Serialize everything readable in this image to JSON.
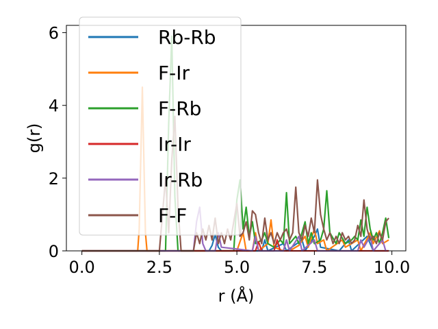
{
  "chart_data": {
    "type": "line",
    "xlabel": "r (Å)",
    "ylabel": "g(r)",
    "xlim": [
      -0.5,
      10.45
    ],
    "ylim": [
      0,
      6.2
    ],
    "xticks": [
      0.0,
      2.5,
      5.0,
      7.5,
      10.0
    ],
    "xtick_labels": [
      "0.0",
      "2.5",
      "5.0",
      "7.5",
      "10.0"
    ],
    "yticks": [
      0,
      2,
      4,
      6
    ],
    "ytick_labels": [
      "0",
      "2",
      "4",
      "6"
    ],
    "legend_position": "top-left",
    "grid": false,
    "series": [
      {
        "name": "Rb-Rb",
        "color": "#1f77b4",
        "points": [
          [
            0,
            0
          ],
          [
            4.1,
            0
          ],
          [
            4.2,
            0.15
          ],
          [
            4.3,
            0.45
          ],
          [
            4.4,
            0.1
          ],
          [
            4.5,
            0
          ],
          [
            5.8,
            0
          ],
          [
            5.9,
            0.3
          ],
          [
            6.0,
            0
          ],
          [
            6.5,
            0.2
          ],
          [
            6.6,
            0
          ],
          [
            7.1,
            0.3
          ],
          [
            7.2,
            0
          ],
          [
            7.5,
            0.4
          ],
          [
            7.6,
            0.6
          ],
          [
            7.7,
            0.1
          ],
          [
            8.3,
            0
          ],
          [
            8.6,
            0.3
          ],
          [
            8.7,
            0
          ],
          [
            9.2,
            0.4
          ],
          [
            9.4,
            0
          ],
          [
            9.9,
            0
          ]
        ]
      },
      {
        "name": "F-Ir",
        "color": "#ff7f0e",
        "points": [
          [
            0,
            0
          ],
          [
            1.8,
            0
          ],
          [
            1.85,
            0.6
          ],
          [
            1.95,
            4.5
          ],
          [
            2.05,
            0.5
          ],
          [
            2.1,
            0
          ],
          [
            5.0,
            0
          ],
          [
            5.2,
            0.5
          ],
          [
            5.3,
            0
          ],
          [
            5.5,
            0
          ],
          [
            5.6,
            0.5
          ],
          [
            5.7,
            0
          ],
          [
            6.0,
            0.2
          ],
          [
            6.1,
            0.85
          ],
          [
            6.2,
            0.1
          ],
          [
            6.5,
            0
          ],
          [
            6.6,
            0.3
          ],
          [
            6.7,
            0
          ],
          [
            7.0,
            0.15
          ],
          [
            7.2,
            0.4
          ],
          [
            7.3,
            0.1
          ],
          [
            7.5,
            0.6
          ],
          [
            7.6,
            0.2
          ],
          [
            7.8,
            0.3
          ],
          [
            7.9,
            0
          ],
          [
            8.4,
            0.3
          ],
          [
            8.5,
            0.1
          ],
          [
            8.9,
            0.3
          ],
          [
            9.0,
            0
          ],
          [
            9.3,
            0.5
          ],
          [
            9.4,
            0.2
          ],
          [
            9.6,
            0.55
          ],
          [
            9.7,
            0.2
          ],
          [
            9.9,
            0.3
          ]
        ]
      },
      {
        "name": "F-Rb",
        "color": "#2ca02c",
        "points": [
          [
            0,
            0
          ],
          [
            2.7,
            0
          ],
          [
            2.8,
            3.5
          ],
          [
            2.9,
            5.9
          ],
          [
            3.0,
            1.5
          ],
          [
            3.1,
            0
          ],
          [
            4.9,
            0
          ],
          [
            5.0,
            1.4
          ],
          [
            5.1,
            1.95
          ],
          [
            5.2,
            0.6
          ],
          [
            5.3,
            1.2
          ],
          [
            5.4,
            0.4
          ],
          [
            5.5,
            0.8
          ],
          [
            5.6,
            0.2
          ],
          [
            5.8,
            0.3
          ],
          [
            5.9,
            0.5
          ],
          [
            6.0,
            0.2
          ],
          [
            6.2,
            0.1
          ],
          [
            6.4,
            0.3
          ],
          [
            6.5,
            0.2
          ],
          [
            6.6,
            1.6
          ],
          [
            6.7,
            0.2
          ],
          [
            6.9,
            0.4
          ],
          [
            7.0,
            0.2
          ],
          [
            7.1,
            0.5
          ],
          [
            7.2,
            0.8
          ],
          [
            7.3,
            0.2
          ],
          [
            7.4,
            0.5
          ],
          [
            7.5,
            0.2
          ],
          [
            7.7,
            0.3
          ],
          [
            7.8,
            0.6
          ],
          [
            7.9,
            1.65
          ],
          [
            8.0,
            0.5
          ],
          [
            8.2,
            0.2
          ],
          [
            8.3,
            0.5
          ],
          [
            8.5,
            0.2
          ],
          [
            8.7,
            0.3
          ],
          [
            8.8,
            0.4
          ],
          [
            8.9,
            0.3
          ],
          [
            9.0,
            0.85
          ],
          [
            9.1,
            0.4
          ],
          [
            9.2,
            1.2
          ],
          [
            9.3,
            0.6
          ],
          [
            9.4,
            0.3
          ],
          [
            9.5,
            0.5
          ],
          [
            9.6,
            0.2
          ],
          [
            9.7,
            0.5
          ],
          [
            9.8,
            0.9
          ],
          [
            9.9,
            0.35
          ]
        ]
      },
      {
        "name": "Ir-Ir",
        "color": "#d62728",
        "points": [
          [
            0,
            0
          ],
          [
            5.6,
            0
          ],
          [
            5.7,
            0.25
          ],
          [
            5.8,
            0
          ],
          [
            6.2,
            0
          ],
          [
            6.3,
            0.3
          ],
          [
            6.4,
            0
          ],
          [
            9.9,
            0
          ]
        ]
      },
      {
        "name": "Ir-Rb",
        "color": "#9467bd",
        "points": [
          [
            0,
            0
          ],
          [
            3.6,
            0
          ],
          [
            3.7,
            0.8
          ],
          [
            3.8,
            1.2
          ],
          [
            3.9,
            0.2
          ],
          [
            4.0,
            0
          ],
          [
            4.3,
            0
          ],
          [
            4.4,
            0.5
          ],
          [
            4.5,
            0.1
          ],
          [
            5.5,
            0
          ],
          [
            5.6,
            0.4
          ],
          [
            5.7,
            0
          ],
          [
            6.5,
            0
          ],
          [
            6.6,
            0.3
          ],
          [
            6.7,
            0
          ],
          [
            7.0,
            0.4
          ],
          [
            7.1,
            0
          ],
          [
            7.5,
            0.3
          ],
          [
            7.6,
            0
          ],
          [
            8.9,
            0
          ],
          [
            9.0,
            0.3
          ],
          [
            9.1,
            0.1
          ],
          [
            9.3,
            0.4
          ],
          [
            9.4,
            0
          ],
          [
            9.7,
            0.3
          ],
          [
            9.8,
            0
          ]
        ]
      },
      {
        "name": "F-F",
        "color": "#8c564b",
        "points": [
          [
            0,
            0
          ],
          [
            2.5,
            0
          ],
          [
            2.6,
            1.0
          ],
          [
            2.7,
            2.0
          ],
          [
            2.8,
            0.5
          ],
          [
            2.9,
            2.5
          ],
          [
            3.0,
            3.7
          ],
          [
            3.1,
            1.2
          ],
          [
            3.2,
            0
          ],
          [
            3.6,
            0
          ],
          [
            3.7,
            0.5
          ],
          [
            3.8,
            0.2
          ],
          [
            3.9,
            0.6
          ],
          [
            4.0,
            0.3
          ],
          [
            4.1,
            0.7
          ],
          [
            4.2,
            0.3
          ],
          [
            4.3,
            0.9
          ],
          [
            4.4,
            0.2
          ],
          [
            4.5,
            0.5
          ],
          [
            4.6,
            0.2
          ],
          [
            4.7,
            0.6
          ],
          [
            4.8,
            0.3
          ],
          [
            4.9,
            0.8
          ],
          [
            5.0,
            1.3
          ],
          [
            5.1,
            0.4
          ],
          [
            5.2,
            0.5
          ],
          [
            5.3,
            0.8
          ],
          [
            5.4,
            0.3
          ],
          [
            5.5,
            1.1
          ],
          [
            5.6,
            1.0
          ],
          [
            5.7,
            0.5
          ],
          [
            5.8,
            0.2
          ],
          [
            5.9,
            0.9
          ],
          [
            6.0,
            0.3
          ],
          [
            6.1,
            0.5
          ],
          [
            6.2,
            0.2
          ],
          [
            6.3,
            0.5
          ],
          [
            6.4,
            0.3
          ],
          [
            6.5,
            0.5
          ],
          [
            6.6,
            0.6
          ],
          [
            6.7,
            0.3
          ],
          [
            6.8,
            0.5
          ],
          [
            6.9,
            1.75
          ],
          [
            7.0,
            0.5
          ],
          [
            7.1,
            0.3
          ],
          [
            7.2,
            0.7
          ],
          [
            7.3,
            0.4
          ],
          [
            7.4,
            0.9
          ],
          [
            7.5,
            0.5
          ],
          [
            7.6,
            1.95
          ],
          [
            7.7,
            1.0
          ],
          [
            7.8,
            0.6
          ],
          [
            7.9,
            0.3
          ],
          [
            8.0,
            0.5
          ],
          [
            8.1,
            0.2
          ],
          [
            8.2,
            0.4
          ],
          [
            8.3,
            0.2
          ],
          [
            8.4,
            0.5
          ],
          [
            8.5,
            0.3
          ],
          [
            8.6,
            0.4
          ],
          [
            8.7,
            0.2
          ],
          [
            8.8,
            0.3
          ],
          [
            8.9,
            0.7
          ],
          [
            9.0,
            0.4
          ],
          [
            9.1,
            1.4
          ],
          [
            9.2,
            0.6
          ],
          [
            9.3,
            0.3
          ],
          [
            9.4,
            0.4
          ],
          [
            9.5,
            0.2
          ],
          [
            9.6,
            0.5
          ],
          [
            9.7,
            0.3
          ],
          [
            9.8,
            0.8
          ],
          [
            9.9,
            0.9
          ]
        ]
      }
    ]
  }
}
